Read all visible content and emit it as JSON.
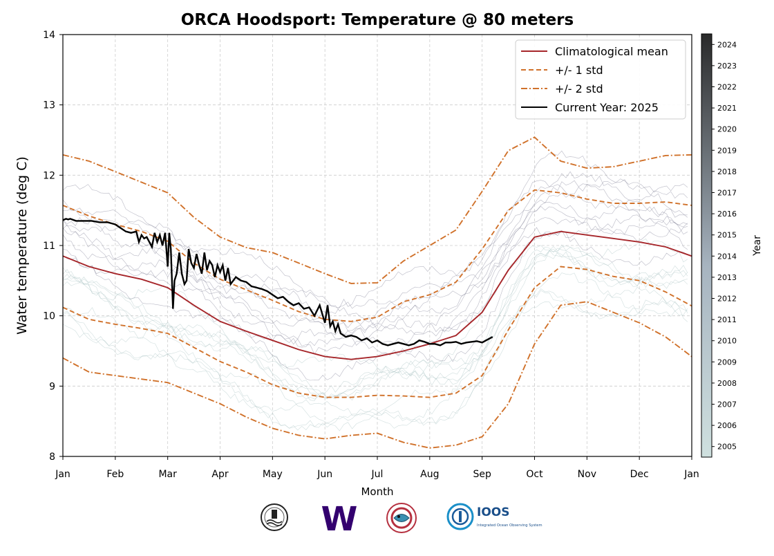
{
  "chart_data": {
    "type": "line",
    "title": "ORCA Hoodsport: Temperature @ 80 meters",
    "xlabel": "Month",
    "ylabel": "Water temperature (deg C)",
    "xlim": [
      0,
      12
    ],
    "ylim": [
      8,
      14
    ],
    "x_ticks": [
      "Jan",
      "Feb",
      "Mar",
      "Apr",
      "May",
      "Jun",
      "Jul",
      "Aug",
      "Sep",
      "Oct",
      "Nov",
      "Dec",
      "Jan"
    ],
    "y_ticks": [
      8,
      9,
      10,
      11,
      12,
      13,
      14
    ],
    "grid": true,
    "legend_position": "top-right",
    "colorbar": {
      "label": "Year",
      "ticks": [
        "2005",
        "2006",
        "2007",
        "2008",
        "2009",
        "2010",
        "2011",
        "2012",
        "2013",
        "2014",
        "2015",
        "2016",
        "2017",
        "2018",
        "2019",
        "2020",
        "2021",
        "2022",
        "2023",
        "2024"
      ],
      "color_low": "#cfe0df",
      "color_high": "#2a2a2a"
    },
    "series": [
      {
        "name": "Climatological mean",
        "color": "#a6262a",
        "style": "solid",
        "x": [
          0,
          0.5,
          1,
          1.5,
          2,
          2.5,
          3,
          3.5,
          4,
          4.5,
          5,
          5.5,
          6,
          6.5,
          7,
          7.5,
          8,
          8.5,
          9,
          9.5,
          10,
          10.5,
          11,
          11.5,
          12
        ],
        "y": [
          10.85,
          10.7,
          10.6,
          10.52,
          10.4,
          10.15,
          9.92,
          9.78,
          9.65,
          9.52,
          9.42,
          9.38,
          9.42,
          9.5,
          9.6,
          9.72,
          10.05,
          10.65,
          11.12,
          11.2,
          11.15,
          11.1,
          11.05,
          10.98,
          10.85
        ]
      },
      {
        "name": "+/- 1 std",
        "color": "#d0712a",
        "style": "dashed",
        "x": [
          0,
          0.5,
          1,
          1.5,
          2,
          2.5,
          3,
          3.5,
          4,
          4.5,
          5,
          5.5,
          6,
          6.5,
          7,
          7.5,
          8,
          8.5,
          9,
          9.5,
          10,
          10.5,
          11,
          11.5,
          12
        ],
        "y": [
          11.57,
          11.42,
          11.3,
          11.2,
          11.06,
          10.75,
          10.52,
          10.37,
          10.22,
          10.06,
          9.95,
          9.92,
          9.98,
          10.2,
          10.3,
          10.48,
          10.95,
          11.5,
          11.79,
          11.75,
          11.66,
          11.6,
          11.6,
          11.62,
          11.57
        ]
      },
      {
        "name": "",
        "color": "#d0712a",
        "style": "dashed",
        "x": [
          0,
          0.5,
          1,
          1.5,
          2,
          2.5,
          3,
          3.5,
          4,
          4.5,
          5,
          5.5,
          6,
          6.5,
          7,
          7.5,
          8,
          8.5,
          9,
          9.5,
          10,
          10.5,
          11,
          11.5,
          12
        ],
        "y": [
          10.12,
          9.95,
          9.88,
          9.82,
          9.75,
          9.55,
          9.35,
          9.2,
          9.02,
          8.9,
          8.84,
          8.84,
          8.87,
          8.86,
          8.84,
          8.9,
          9.15,
          9.8,
          10.4,
          10.7,
          10.66,
          10.56,
          10.5,
          10.34,
          10.14
        ]
      },
      {
        "name": "+/- 2 std",
        "color": "#d0712a",
        "style": "dashdot",
        "x": [
          0,
          0.5,
          1,
          1.5,
          2,
          2.5,
          3,
          3.5,
          4,
          4.5,
          5,
          5.5,
          6,
          6.5,
          7,
          7.5,
          8,
          8.5,
          9,
          9.5,
          10,
          10.5,
          11,
          11.5,
          12
        ],
        "y": [
          12.29,
          12.2,
          12.05,
          11.9,
          11.75,
          11.4,
          11.12,
          10.97,
          10.9,
          10.75,
          10.6,
          10.46,
          10.47,
          10.78,
          11.0,
          11.22,
          11.77,
          12.35,
          12.54,
          12.2,
          12.1,
          12.12,
          12.2,
          12.28,
          12.29
        ]
      },
      {
        "name": "",
        "color": "#d0712a",
        "style": "dashdot",
        "x": [
          0,
          0.5,
          1,
          1.5,
          2,
          2.5,
          3,
          3.5,
          4,
          4.5,
          5,
          5.5,
          6,
          6.5,
          7,
          7.5,
          8,
          8.5,
          9,
          9.5,
          10,
          10.5,
          11,
          11.5,
          12
        ],
        "y": [
          9.4,
          9.2,
          9.15,
          9.1,
          9.05,
          8.9,
          8.75,
          8.56,
          8.4,
          8.3,
          8.25,
          8.3,
          8.33,
          8.2,
          8.12,
          8.16,
          8.28,
          8.75,
          9.6,
          10.15,
          10.2,
          10.05,
          9.9,
          9.7,
          9.42
        ]
      },
      {
        "name": "Current Year: 2025",
        "color": "#000000",
        "style": "solid",
        "x": [
          0.0,
          0.06,
          0.1,
          0.14,
          0.25,
          0.55,
          0.7,
          0.85,
          1.0,
          1.1,
          1.2,
          1.3,
          1.4,
          1.45,
          1.5,
          1.55,
          1.6,
          1.65,
          1.7,
          1.75,
          1.8,
          1.85,
          1.9,
          1.95,
          2.0,
          2.03,
          2.06,
          2.1,
          2.13,
          2.17,
          2.22,
          2.27,
          2.32,
          2.36,
          2.4,
          2.45,
          2.5,
          2.55,
          2.6,
          2.65,
          2.7,
          2.75,
          2.8,
          2.85,
          2.9,
          2.95,
          3.0,
          3.05,
          3.1,
          3.15,
          3.2,
          3.3,
          3.4,
          3.5,
          3.6,
          3.7,
          3.8,
          3.9,
          4.0,
          4.1,
          4.2,
          4.3,
          4.4,
          4.5,
          4.6,
          4.7,
          4.8,
          4.9,
          5.0,
          5.05,
          5.1,
          5.15,
          5.2,
          5.25,
          5.3,
          5.4,
          5.5,
          5.6,
          5.7,
          5.8,
          5.9,
          6.0,
          6.1,
          6.2,
          6.3,
          6.4,
          6.5,
          6.6,
          6.7,
          6.8,
          6.9,
          7.0,
          7.1,
          7.2,
          7.3,
          7.4,
          7.5,
          7.6,
          7.7,
          7.8,
          7.9,
          8.0,
          8.1,
          8.2
        ],
        "y": [
          11.36,
          11.38,
          11.37,
          11.38,
          11.35,
          11.35,
          11.33,
          11.33,
          11.3,
          11.25,
          11.2,
          11.18,
          11.2,
          11.05,
          11.15,
          11.1,
          11.12,
          11.05,
          10.98,
          11.18,
          11.05,
          11.15,
          11.0,
          11.18,
          10.7,
          11.18,
          10.95,
          10.1,
          10.5,
          10.6,
          10.9,
          10.6,
          10.45,
          10.5,
          10.95,
          10.75,
          10.68,
          10.88,
          10.72,
          10.6,
          10.9,
          10.65,
          10.78,
          10.72,
          10.55,
          10.72,
          10.62,
          10.72,
          10.5,
          10.68,
          10.45,
          10.55,
          10.5,
          10.48,
          10.42,
          10.4,
          10.38,
          10.35,
          10.3,
          10.25,
          10.27,
          10.2,
          10.15,
          10.18,
          10.1,
          10.12,
          10.0,
          10.15,
          9.9,
          10.15,
          9.85,
          9.92,
          9.78,
          9.88,
          9.75,
          9.7,
          9.72,
          9.7,
          9.65,
          9.68,
          9.62,
          9.65,
          9.6,
          9.58,
          9.6,
          9.62,
          9.6,
          9.58,
          9.6,
          9.65,
          9.63,
          9.6,
          9.6,
          9.58,
          9.62,
          9.62,
          9.63,
          9.6,
          9.62,
          9.63,
          9.64,
          9.62,
          9.66,
          9.7
        ]
      }
    ],
    "legend": [
      {
        "label": "Climatological mean",
        "color": "#a6262a",
        "style": "solid"
      },
      {
        "label": "+/- 1 std",
        "color": "#d0712a",
        "style": "dashed"
      },
      {
        "label": "+/- 2 std",
        "color": "#d0712a",
        "style": "dashdot"
      },
      {
        "label": "Current Year: 2025",
        "color": "#000000",
        "style": "solid"
      }
    ]
  },
  "logos": [
    {
      "name": "nanoos-seal-logo",
      "text": ""
    },
    {
      "name": "uw-w-logo",
      "text": "W"
    },
    {
      "name": "tribal-emblem-logo",
      "text": ""
    },
    {
      "name": "ioos-logo",
      "text": "IOOS"
    },
    {
      "name": "ioos-subtitle",
      "text": "Integrated Ocean Observing System"
    }
  ]
}
